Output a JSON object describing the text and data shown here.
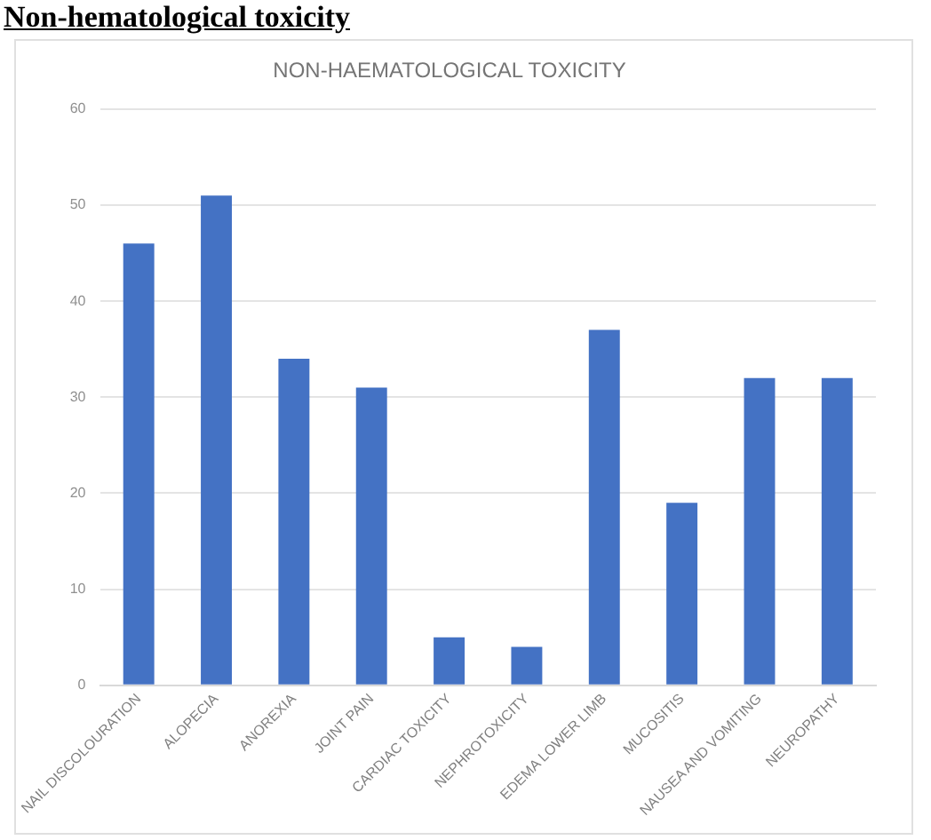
{
  "chart_data": {
    "type": "bar",
    "title": "NON-HAEMATOLOGICAL TOXICITY",
    "annotations": [
      "Non-hematological toxicity"
    ],
    "categories": [
      "NAIL DISCOLOURATION",
      "ALOPECIA",
      "ANOREXIA",
      "JOINT PAIN",
      "CARDIAC TOXICITY",
      "NEPHROTOXICITY",
      "EDEMA LOWER LIMB",
      "MUCOSITIS",
      "NAUSEA AND VOMITING",
      "NEUROPATHY"
    ],
    "values": [
      46,
      51,
      34,
      31,
      5,
      4,
      37,
      19,
      32,
      32
    ],
    "color": "#4472c4",
    "ylim": [
      0,
      60
    ],
    "yticks": [
      0,
      10,
      20,
      30,
      40,
      50,
      60
    ],
    "grid": "y"
  }
}
